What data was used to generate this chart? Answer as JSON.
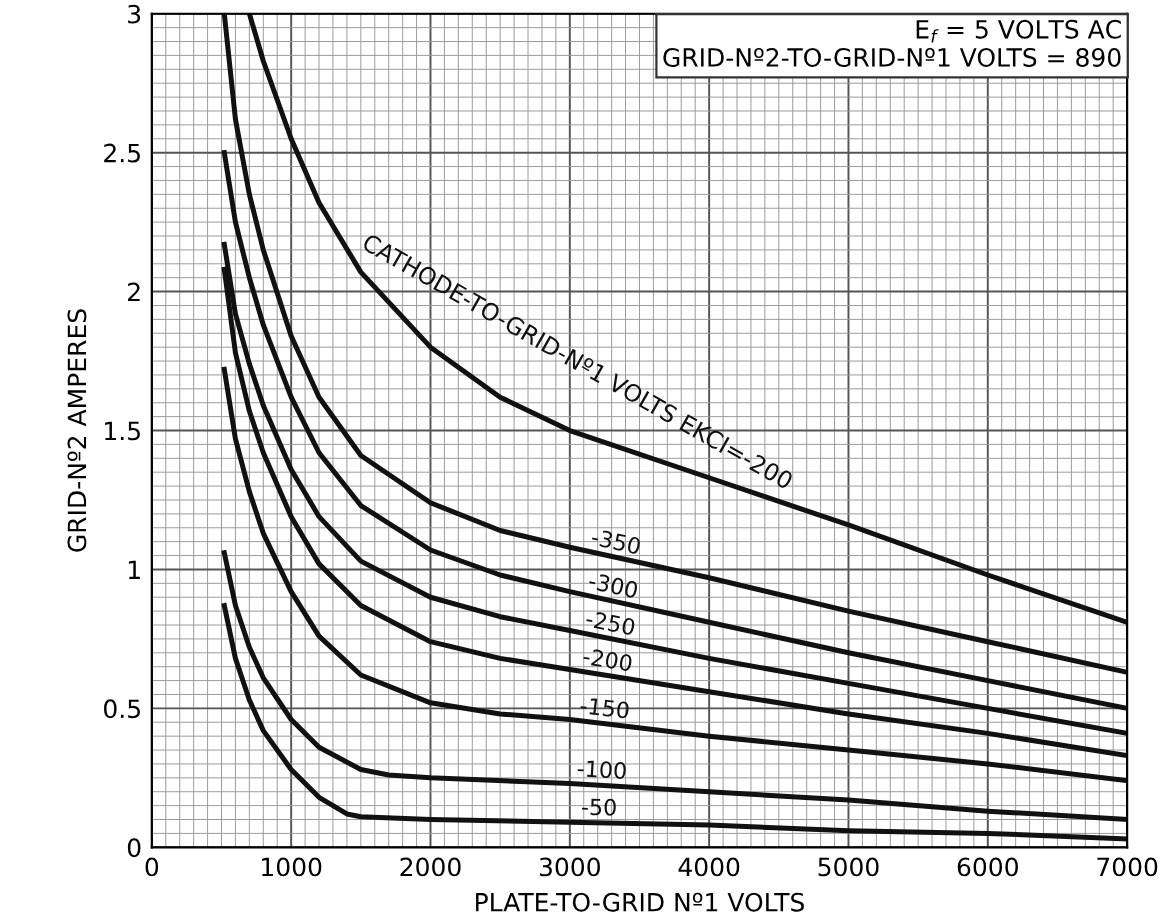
{
  "chart_data": {
    "type": "line",
    "xlabel": "PLATE-TO-GRID Nº1 VOLTS",
    "ylabel": "GRID-Nº2 AMPERES",
    "annotations": [
      "E$_{f}$ = 5 VOLTS AC\nGRID-Nº2-TO-GRID-Nº1 VOLTS = 890"
    ],
    "xlim": [
      0,
      7000
    ],
    "ylim": [
      0,
      3
    ],
    "xticks": [
      0,
      1000,
      2000,
      3000,
      4000,
      5000,
      6000,
      7000
    ],
    "yticks": [
      0,
      0.5,
      1,
      1.5,
      2,
      2.5,
      3
    ],
    "grid": true,
    "legend": false,
    "marker": "none",
    "line_style": "solid",
    "series": [
      {
        "name": "CATHODE-TO-GRID-Nº1 VOLTS EKCI=-200",
        "color": "#111111",
        "x": [
          700,
          800,
          1000,
          1200,
          1500,
          2000,
          2500,
          3000,
          4000,
          5000,
          6000,
          7000
        ],
        "values": [
          3.0,
          2.83,
          2.55,
          2.32,
          2.07,
          1.8,
          1.62,
          1.5,
          1.33,
          1.16,
          0.98,
          0.81
        ]
      },
      {
        "name": "-350",
        "color": "#111111",
        "x": [
          520,
          600,
          700,
          800,
          1000,
          1200,
          1500,
          2000,
          2500,
          3000,
          4000,
          5000,
          6000,
          7000
        ],
        "values": [
          3.0,
          2.62,
          2.35,
          2.15,
          1.84,
          1.62,
          1.41,
          1.24,
          1.14,
          1.08,
          0.97,
          0.85,
          0.74,
          0.63
        ]
      },
      {
        "name": "-300",
        "color": "#111111",
        "x": [
          520,
          600,
          700,
          800,
          1000,
          1200,
          1500,
          2000,
          2500,
          3000,
          4000,
          5000,
          6000,
          7000
        ],
        "values": [
          2.5,
          2.25,
          2.05,
          1.88,
          1.62,
          1.42,
          1.23,
          1.07,
          0.98,
          0.92,
          0.81,
          0.7,
          0.6,
          0.5
        ]
      },
      {
        "name": "-250",
        "color": "#111111",
        "x": [
          520,
          600,
          700,
          800,
          1000,
          1200,
          1500,
          2000,
          2500,
          3000,
          4000,
          5000,
          6000,
          7000
        ],
        "values": [
          2.17,
          1.92,
          1.74,
          1.59,
          1.36,
          1.19,
          1.03,
          0.9,
          0.83,
          0.78,
          0.68,
          0.59,
          0.5,
          0.41
        ]
      },
      {
        "name": "-200",
        "color": "#111111",
        "x": [
          520,
          600,
          700,
          800,
          1000,
          1200,
          1500,
          2000,
          2500,
          3000,
          4000,
          5000,
          6000,
          7000
        ],
        "values": [
          2.08,
          1.78,
          1.57,
          1.42,
          1.19,
          1.02,
          0.87,
          0.74,
          0.68,
          0.64,
          0.56,
          0.48,
          0.41,
          0.33
        ]
      },
      {
        "name": "-150",
        "color": "#111111",
        "x": [
          520,
          600,
          700,
          800,
          1000,
          1200,
          1500,
          2000,
          2500,
          3000,
          4000,
          5000,
          6000,
          7000
        ],
        "values": [
          1.72,
          1.47,
          1.28,
          1.13,
          0.92,
          0.76,
          0.62,
          0.52,
          0.48,
          0.46,
          0.4,
          0.35,
          0.3,
          0.24
        ]
      },
      {
        "name": "-100",
        "color": "#111111",
        "x": [
          520,
          600,
          700,
          800,
          1000,
          1200,
          1500,
          1700,
          2000,
          3000,
          4000,
          5000,
          6000,
          7000
        ],
        "values": [
          1.06,
          0.87,
          0.72,
          0.61,
          0.46,
          0.36,
          0.28,
          0.26,
          0.25,
          0.23,
          0.2,
          0.17,
          0.13,
          0.1
        ]
      },
      {
        "name": "-50",
        "color": "#111111",
        "x": [
          520,
          600,
          700,
          800,
          1000,
          1200,
          1400,
          1500,
          2000,
          3000,
          4000,
          5000,
          6000,
          7000
        ],
        "values": [
          0.87,
          0.68,
          0.53,
          0.42,
          0.28,
          0.18,
          0.12,
          0.11,
          0.1,
          0.09,
          0.08,
          0.06,
          0.05,
          0.03
        ]
      }
    ]
  }
}
